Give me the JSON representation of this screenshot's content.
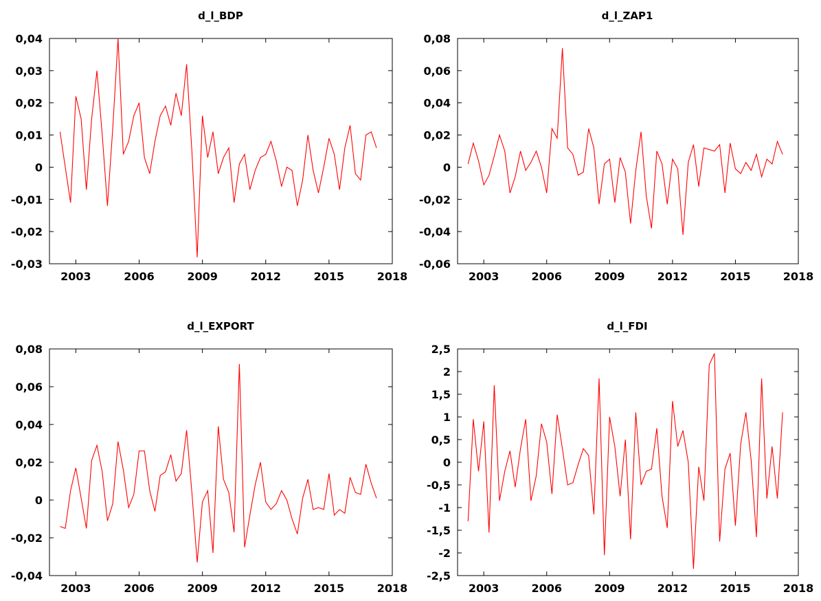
{
  "chart_data": [
    {
      "type": "line",
      "title": "d_l_BDP",
      "xlabel": "",
      "ylabel": "",
      "color": "#ff0000",
      "xlim": [
        2001.75,
        2018
      ],
      "ylim": [
        -0.03,
        0.04
      ],
      "xticks": [
        2003,
        2006,
        2009,
        2012,
        2015,
        2018
      ],
      "xtick_labels": [
        "2003",
        "2006",
        "2009",
        "2012",
        "2015",
        "2018"
      ],
      "yticks": [
        -0.03,
        -0.02,
        -0.01,
        0,
        0.01,
        0.02,
        0.03,
        0.04
      ],
      "ytick_labels": [
        "-0,03",
        "-0,02",
        "-0,01",
        "0",
        "0,01",
        "0,02",
        "0,03",
        "0,04"
      ],
      "grid": false,
      "series": [
        {
          "x_start": 2002.25,
          "x_step": 0.25,
          "values": [
            0.011,
            0.0,
            -0.011,
            0.022,
            0.015,
            -0.007,
            0.015,
            0.03,
            0.01,
            -0.012,
            0.012,
            0.04,
            0.004,
            0.008,
            0.016,
            0.02,
            0.003,
            -0.002,
            0.008,
            0.016,
            0.019,
            0.013,
            0.023,
            0.016,
            0.032,
            0.005,
            -0.028,
            0.016,
            0.003,
            0.011,
            -0.002,
            0.003,
            0.006,
            -0.011,
            0.001,
            0.004,
            -0.007,
            -0.001,
            0.003,
            0.004,
            0.008,
            0.002,
            -0.006,
            0.0,
            -0.001,
            -0.012,
            -0.004,
            0.01,
            -0.001,
            -0.008,
            0.0,
            0.009,
            0.004,
            -0.007,
            0.006,
            0.013,
            -0.002,
            -0.004,
            0.01,
            0.011,
            0.006
          ]
        }
      ]
    },
    {
      "type": "line",
      "title": "d_l_ZAP1",
      "xlabel": "",
      "ylabel": "",
      "color": "#ff0000",
      "xlim": [
        2001.75,
        2018
      ],
      "ylim": [
        -0.06,
        0.08
      ],
      "xticks": [
        2003,
        2006,
        2009,
        2012,
        2015,
        2018
      ],
      "xtick_labels": [
        "2003",
        "2006",
        "2009",
        "2012",
        "2015",
        "2018"
      ],
      "yticks": [
        -0.06,
        -0.04,
        -0.02,
        0,
        0.02,
        0.04,
        0.06,
        0.08
      ],
      "ytick_labels": [
        "-0,06",
        "-0,04",
        "-0,02",
        "0",
        "0,02",
        "0,04",
        "0,06",
        "0,08"
      ],
      "grid": false,
      "series": [
        {
          "x_start": 2002.25,
          "x_step": 0.25,
          "values": [
            0.002,
            0.015,
            0.004,
            -0.011,
            -0.005,
            0.007,
            0.02,
            0.01,
            -0.016,
            -0.006,
            0.01,
            -0.002,
            0.003,
            0.01,
            0.0,
            -0.016,
            0.024,
            0.018,
            0.074,
            0.012,
            0.008,
            -0.005,
            -0.003,
            0.024,
            0.012,
            -0.023,
            0.002,
            0.005,
            -0.022,
            0.006,
            -0.003,
            -0.035,
            -0.002,
            0.022,
            -0.018,
            -0.038,
            0.01,
            0.002,
            -0.023,
            0.005,
            -0.001,
            -0.042,
            0.003,
            0.014,
            -0.012,
            0.012,
            0.011,
            0.01,
            0.014,
            -0.016,
            0.015,
            -0.001,
            -0.004,
            0.003,
            -0.002,
            0.008,
            -0.006,
            0.005,
            0.002,
            0.016,
            0.008
          ]
        }
      ]
    },
    {
      "type": "line",
      "title": "d_l_EXPORT",
      "xlabel": "",
      "ylabel": "",
      "color": "#ff0000",
      "xlim": [
        2001.75,
        2018
      ],
      "ylim": [
        -0.04,
        0.08
      ],
      "xticks": [
        2003,
        2006,
        2009,
        2012,
        2015,
        2018
      ],
      "xtick_labels": [
        "2003",
        "2006",
        "2009",
        "2012",
        "2015",
        "2018"
      ],
      "yticks": [
        -0.04,
        -0.02,
        0,
        0.02,
        0.04,
        0.06,
        0.08
      ],
      "ytick_labels": [
        "-0,04",
        "-0,02",
        "0",
        "0,02",
        "0,04",
        "0,06",
        "0,08"
      ],
      "grid": false,
      "series": [
        {
          "x_start": 2002.25,
          "x_step": 0.25,
          "values": [
            -0.014,
            -0.015,
            0.005,
            0.017,
            0.001,
            -0.015,
            0.021,
            0.029,
            0.015,
            -0.011,
            -0.002,
            0.031,
            0.016,
            -0.004,
            0.003,
            0.026,
            0.026,
            0.005,
            -0.006,
            0.013,
            0.015,
            0.024,
            0.01,
            0.014,
            0.037,
            0.004,
            -0.033,
            -0.001,
            0.005,
            -0.028,
            0.039,
            0.011,
            0.004,
            -0.017,
            0.072,
            -0.025,
            -0.008,
            0.008,
            0.02,
            -0.001,
            -0.005,
            -0.002,
            0.005,
            0.0,
            -0.01,
            -0.018,
            0.001,
            0.011,
            -0.005,
            -0.004,
            -0.005,
            0.014,
            -0.008,
            -0.005,
            -0.007,
            0.012,
            0.004,
            0.003,
            0.019,
            0.009,
            0.001
          ]
        }
      ]
    },
    {
      "type": "line",
      "title": "d_l_FDI",
      "xlabel": "",
      "ylabel": "",
      "color": "#ff0000",
      "xlim": [
        2001.75,
        2018
      ],
      "ylim": [
        -2.5,
        2.5
      ],
      "xticks": [
        2003,
        2006,
        2009,
        2012,
        2015,
        2018
      ],
      "xtick_labels": [
        "2003",
        "2006",
        "2009",
        "2012",
        "2015",
        "2018"
      ],
      "yticks": [
        -2.5,
        -2,
        -1.5,
        -1,
        -0.5,
        0,
        0.5,
        1,
        1.5,
        2,
        2.5
      ],
      "ytick_labels": [
        "-2,5",
        "-2",
        "-1,5",
        "-1",
        "-0,5",
        "0",
        "0,5",
        "1",
        "1,5",
        "2",
        "2,5"
      ],
      "grid": false,
      "series": [
        {
          "x_start": 2002.25,
          "x_step": 0.25,
          "values": [
            -1.3,
            0.95,
            -0.2,
            0.9,
            -1.55,
            1.7,
            -0.85,
            -0.2,
            0.25,
            -0.55,
            0.3,
            0.95,
            -0.85,
            -0.3,
            0.85,
            0.45,
            -0.7,
            1.05,
            0.3,
            -0.5,
            -0.45,
            -0.05,
            0.3,
            0.15,
            -1.15,
            1.85,
            -2.05,
            1.0,
            0.35,
            -0.75,
            0.5,
            -1.7,
            1.1,
            -0.5,
            -0.2,
            -0.15,
            0.75,
            -0.75,
            -1.45,
            1.35,
            0.35,
            0.7,
            0.0,
            -2.35,
            -0.1,
            -0.85,
            2.15,
            2.4,
            -1.75,
            -0.15,
            0.2,
            -1.4,
            0.4,
            1.1,
            0.05,
            -1.65,
            1.85,
            -0.8,
            0.35,
            -0.8,
            1.1
          ]
        }
      ]
    }
  ]
}
